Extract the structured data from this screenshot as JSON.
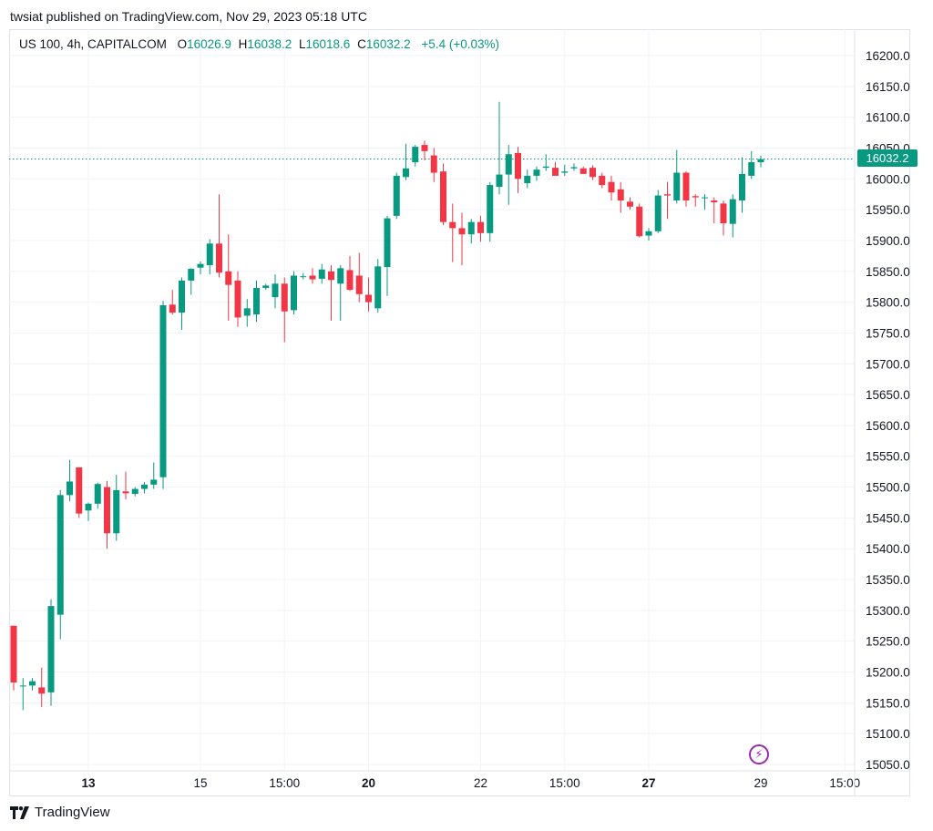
{
  "publisher_line": "twsiat published on TradingView.com, Nov 29, 2023 05:18 UTC",
  "legend": {
    "symbol": "US 100, 4h, CAPITALCOM",
    "open_label": "O",
    "open": "16026.9",
    "high_label": "H",
    "high": "16038.2",
    "low_label": "L",
    "low": "16018.6",
    "close_label": "C",
    "close": "16032.2",
    "change": "+5.4 (+0.03%)"
  },
  "last_price_tag": "16032.2",
  "brand": "TradingView",
  "bolt_icon": "lightning-icon",
  "colors": {
    "up": "#089981",
    "down": "#f23645",
    "grid": "#f0f3fa",
    "text": "#131722"
  },
  "chart_data": {
    "type": "candlestick",
    "symbol": "US 100",
    "timeframe": "4h",
    "exchange": "CAPITALCOM",
    "y_ticks": [
      "16200.0",
      "16150.0",
      "16100.0",
      "16050.0",
      "16000.0",
      "15950.0",
      "15900.0",
      "15850.0",
      "15800.0",
      "15750.0",
      "15700.0",
      "15650.0",
      "15600.0",
      "15550.0",
      "15500.0",
      "15450.0",
      "15400.0",
      "15350.0",
      "15300.0",
      "15250.0",
      "15200.0",
      "15150.0",
      "15100.0",
      "15050.0"
    ],
    "ylim": [
      15020,
      16245
    ],
    "last_price": 16032.2,
    "x_ticks": [
      {
        "label": "13",
        "bar": 8,
        "bold": true
      },
      {
        "label": "15",
        "bar": 20,
        "bold": false
      },
      {
        "label": "15:00",
        "bar": 29,
        "bold": false
      },
      {
        "label": "20",
        "bar": 38,
        "bold": true
      },
      {
        "label": "22",
        "bar": 50,
        "bold": false
      },
      {
        "label": "15:00",
        "bar": 59,
        "bold": false
      },
      {
        "label": "27",
        "bar": 68,
        "bold": true
      },
      {
        "label": "29",
        "bar": 80,
        "bold": false
      },
      {
        "label": "15:00",
        "bar": 89,
        "bold": false
      }
    ],
    "candles": [
      {
        "o": 15275,
        "h": 15275,
        "l": 15170,
        "c": 15183
      },
      {
        "o": 15178,
        "h": 15190,
        "l": 15138,
        "c": 15178
      },
      {
        "o": 15178,
        "h": 15190,
        "l": 15170,
        "c": 15185
      },
      {
        "o": 15175,
        "h": 15207,
        "l": 15143,
        "c": 15165
      },
      {
        "o": 15167,
        "h": 15318,
        "l": 15145,
        "c": 15307
      },
      {
        "o": 15293,
        "h": 15495,
        "l": 15253,
        "c": 15487
      },
      {
        "o": 15487,
        "h": 15544,
        "l": 15477,
        "c": 15509
      },
      {
        "o": 15532,
        "h": 15532,
        "l": 15450,
        "c": 15457
      },
      {
        "o": 15462,
        "h": 15475,
        "l": 15445,
        "c": 15473
      },
      {
        "o": 15473,
        "h": 15507,
        "l": 15465,
        "c": 15505
      },
      {
        "o": 15500,
        "h": 15510,
        "l": 15400,
        "c": 15425
      },
      {
        "o": 15425,
        "h": 15520,
        "l": 15413,
        "c": 15495
      },
      {
        "o": 15493,
        "h": 15525,
        "l": 15480,
        "c": 15490
      },
      {
        "o": 15489,
        "h": 15500,
        "l": 15485,
        "c": 15497
      },
      {
        "o": 15497,
        "h": 15508,
        "l": 15490,
        "c": 15504
      },
      {
        "o": 15504,
        "h": 15540,
        "l": 15497,
        "c": 15512
      },
      {
        "o": 15516,
        "h": 15802,
        "l": 15497,
        "c": 15795
      },
      {
        "o": 15796,
        "h": 15820,
        "l": 15780,
        "c": 15783
      },
      {
        "o": 15783,
        "h": 15840,
        "l": 15755,
        "c": 15835
      },
      {
        "o": 15835,
        "h": 15855,
        "l": 15812,
        "c": 15854
      },
      {
        "o": 15856,
        "h": 15866,
        "l": 15845,
        "c": 15862
      },
      {
        "o": 15860,
        "h": 15902,
        "l": 15845,
        "c": 15895
      },
      {
        "o": 15895,
        "h": 15975,
        "l": 15840,
        "c": 15848
      },
      {
        "o": 15850,
        "h": 15910,
        "l": 15770,
        "c": 15828
      },
      {
        "o": 15835,
        "h": 15850,
        "l": 15760,
        "c": 15775
      },
      {
        "o": 15778,
        "h": 15805,
        "l": 15760,
        "c": 15790
      },
      {
        "o": 15780,
        "h": 15835,
        "l": 15768,
        "c": 15823
      },
      {
        "o": 15823,
        "h": 15830,
        "l": 15820,
        "c": 15827
      },
      {
        "o": 15808,
        "h": 15845,
        "l": 15790,
        "c": 15830
      },
      {
        "o": 15830,
        "h": 15840,
        "l": 15735,
        "c": 15785
      },
      {
        "o": 15787,
        "h": 15850,
        "l": 15780,
        "c": 15843
      },
      {
        "o": 15841,
        "h": 15847,
        "l": 15837,
        "c": 15842
      },
      {
        "o": 15843,
        "h": 15855,
        "l": 15830,
        "c": 15837
      },
      {
        "o": 15838,
        "h": 15862,
        "l": 15830,
        "c": 15853
      },
      {
        "o": 15850,
        "h": 15860,
        "l": 15770,
        "c": 15836
      },
      {
        "o": 15830,
        "h": 15860,
        "l": 15770,
        "c": 15855
      },
      {
        "o": 15852,
        "h": 15875,
        "l": 15818,
        "c": 15820
      },
      {
        "o": 15843,
        "h": 15880,
        "l": 15800,
        "c": 15813
      },
      {
        "o": 15812,
        "h": 15840,
        "l": 15785,
        "c": 15800
      },
      {
        "o": 15790,
        "h": 15870,
        "l": 15783,
        "c": 15858
      },
      {
        "o": 15857,
        "h": 15940,
        "l": 15810,
        "c": 15936
      },
      {
        "o": 15940,
        "h": 16010,
        "l": 15935,
        "c": 16005
      },
      {
        "o": 16003,
        "h": 16057,
        "l": 15998,
        "c": 16017
      },
      {
        "o": 16027,
        "h": 16055,
        "l": 16020,
        "c": 16052
      },
      {
        "o": 16055,
        "h": 16062,
        "l": 16030,
        "c": 16045
      },
      {
        "o": 16038,
        "h": 16050,
        "l": 15995,
        "c": 16010
      },
      {
        "o": 16012,
        "h": 16025,
        "l": 15925,
        "c": 15930
      },
      {
        "o": 15930,
        "h": 15960,
        "l": 15865,
        "c": 15920
      },
      {
        "o": 15920,
        "h": 15945,
        "l": 15860,
        "c": 15910
      },
      {
        "o": 15910,
        "h": 15935,
        "l": 15895,
        "c": 15930
      },
      {
        "o": 15930,
        "h": 15940,
        "l": 15898,
        "c": 15912
      },
      {
        "o": 15912,
        "h": 15995,
        "l": 15898,
        "c": 15990
      },
      {
        "o": 15987,
        "h": 16125,
        "l": 15975,
        "c": 16007
      },
      {
        "o": 16007,
        "h": 16055,
        "l": 15958,
        "c": 16040
      },
      {
        "o": 16042,
        "h": 16052,
        "l": 15977,
        "c": 16000
      },
      {
        "o": 15993,
        "h": 16015,
        "l": 15985,
        "c": 16005
      },
      {
        "o": 16005,
        "h": 16020,
        "l": 15997,
        "c": 16015
      },
      {
        "o": 16018,
        "h": 16040,
        "l": 16013,
        "c": 16020
      },
      {
        "o": 16018,
        "h": 16027,
        "l": 16005,
        "c": 16005
      },
      {
        "o": 16010,
        "h": 16023,
        "l": 16005,
        "c": 16012
      },
      {
        "o": 16017,
        "h": 16025,
        "l": 16013,
        "c": 16019
      },
      {
        "o": 16017,
        "h": 16020,
        "l": 16008,
        "c": 16008
      },
      {
        "o": 16018,
        "h": 16022,
        "l": 15998,
        "c": 16003
      },
      {
        "o": 16005,
        "h": 16010,
        "l": 15985,
        "c": 15990
      },
      {
        "o": 15995,
        "h": 16005,
        "l": 15965,
        "c": 15978
      },
      {
        "o": 15983,
        "h": 15995,
        "l": 15945,
        "c": 15965
      },
      {
        "o": 15963,
        "h": 15970,
        "l": 15950,
        "c": 15955
      },
      {
        "o": 15955,
        "h": 15960,
        "l": 15905,
        "c": 15907
      },
      {
        "o": 15908,
        "h": 15920,
        "l": 15900,
        "c": 15915
      },
      {
        "o": 15915,
        "h": 15982,
        "l": 15912,
        "c": 15973
      },
      {
        "o": 15975,
        "h": 15995,
        "l": 15935,
        "c": 15973
      },
      {
        "o": 15965,
        "h": 16047,
        "l": 15960,
        "c": 16010
      },
      {
        "o": 16010,
        "h": 16012,
        "l": 15955,
        "c": 15965
      },
      {
        "o": 15972,
        "h": 15975,
        "l": 15955,
        "c": 15970
      },
      {
        "o": 15970,
        "h": 15975,
        "l": 15950,
        "c": 15970
      },
      {
        "o": 15965,
        "h": 15970,
        "l": 15928,
        "c": 15962
      },
      {
        "o": 15960,
        "h": 15965,
        "l": 15908,
        "c": 15928
      },
      {
        "o": 15927,
        "h": 15975,
        "l": 15905,
        "c": 15967
      },
      {
        "o": 15965,
        "h": 16035,
        "l": 15945,
        "c": 16008
      },
      {
        "o": 16005,
        "h": 16045,
        "l": 16000,
        "c": 16027
      },
      {
        "o": 16027,
        "h": 16038,
        "l": 16019,
        "c": 16032
      }
    ]
  }
}
